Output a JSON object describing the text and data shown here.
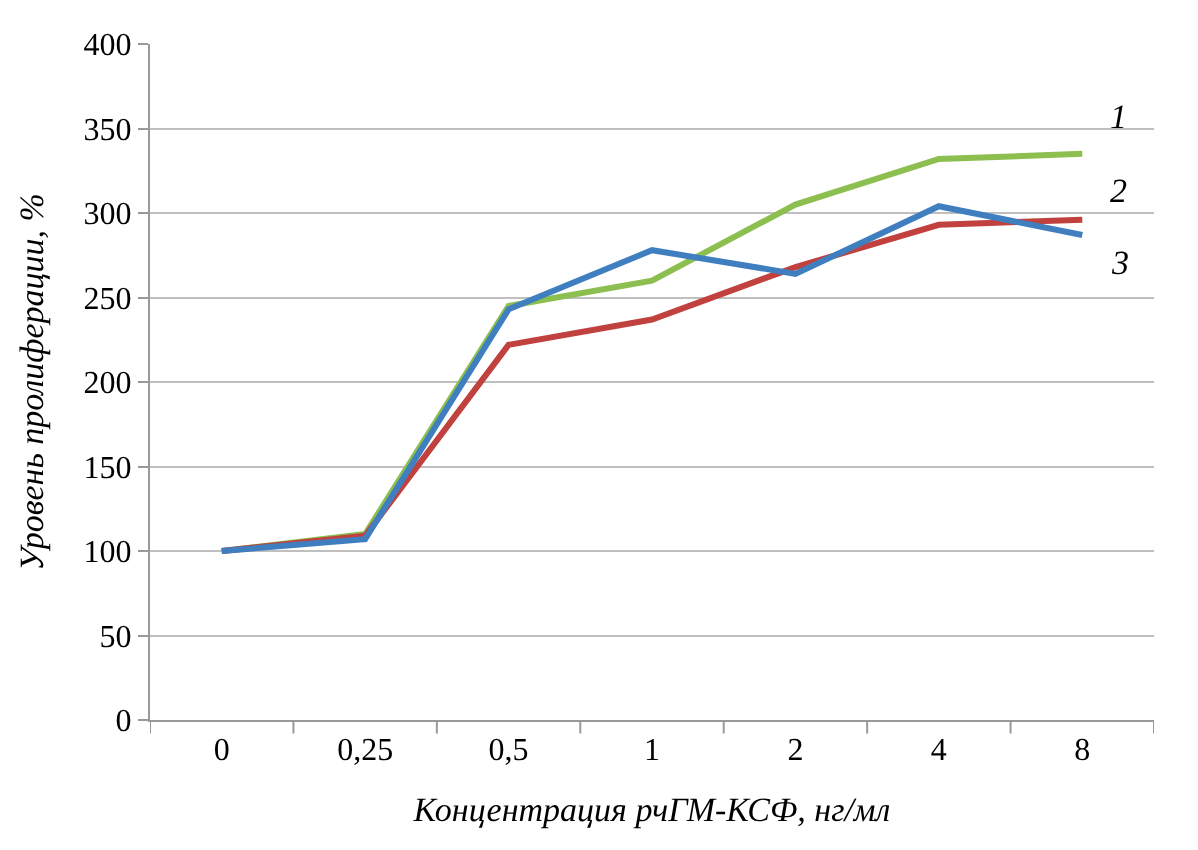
{
  "chart_data": {
    "type": "line",
    "xlabel": "Концентрация рчГМ-КСФ, нг/мл",
    "ylabel": "Уровень пролиферации, %",
    "categories": [
      "0",
      "0,25",
      "0,5",
      "1",
      "2",
      "4",
      "8"
    ],
    "series": [
      {
        "name": "1",
        "color": "#8cbf4f",
        "values": [
          100,
          110,
          245,
          260,
          305,
          332,
          335
        ]
      },
      {
        "name": "2",
        "color": "#c0413e",
        "values": [
          100,
          109,
          222,
          237,
          268,
          293,
          296
        ]
      },
      {
        "name": "3",
        "color": "#3f7fc0",
        "values": [
          100,
          107,
          243,
          278,
          264,
          304,
          287
        ]
      }
    ],
    "ylim": [
      0,
      400
    ],
    "yticks": [
      0,
      50,
      100,
      150,
      200,
      250,
      300,
      350,
      400
    ],
    "grid": "y",
    "legend": false,
    "marker": "none",
    "line_style": "solid"
  }
}
